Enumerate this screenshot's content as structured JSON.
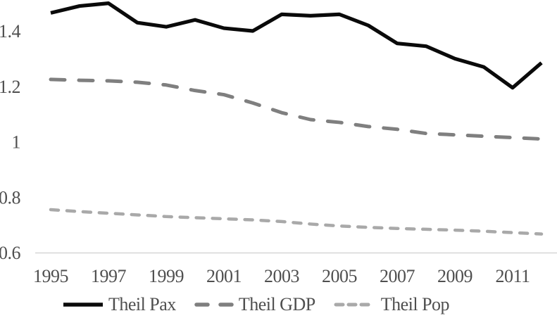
{
  "chart_data": {
    "type": "line",
    "title": "",
    "xlabel": "",
    "ylabel": "",
    "x": [
      1995,
      1996,
      1997,
      1998,
      1999,
      2000,
      2001,
      2002,
      2003,
      2004,
      2005,
      2006,
      2007,
      2008,
      2009,
      2010,
      2011,
      2012
    ],
    "series": [
      {
        "name": "Theil Pax",
        "color": "#0a0a0a",
        "line_style": "solid",
        "values": [
          1.465,
          1.49,
          1.5,
          1.43,
          1.415,
          1.44,
          1.41,
          1.4,
          1.46,
          1.455,
          1.46,
          1.42,
          1.355,
          1.345,
          1.3,
          1.27,
          1.195,
          1.285
        ]
      },
      {
        "name": "Theil GDP",
        "color": "#7f7f7f",
        "line_style": "dashed",
        "values": [
          1.225,
          1.222,
          1.22,
          1.215,
          1.205,
          1.185,
          1.17,
          1.14,
          1.105,
          1.08,
          1.07,
          1.055,
          1.045,
          1.03,
          1.025,
          1.02,
          1.015,
          1.01
        ]
      },
      {
        "name": "Theil Pop",
        "color": "#a9a9a9",
        "line_style": "dashed-short",
        "values": [
          0.755,
          0.748,
          0.742,
          0.736,
          0.73,
          0.726,
          0.722,
          0.718,
          0.712,
          0.703,
          0.696,
          0.691,
          0.687,
          0.684,
          0.681,
          0.677,
          0.672,
          0.667
        ]
      }
    ],
    "xticks": [
      "1995",
      "1997",
      "1999",
      "2001",
      "2003",
      "2005",
      "2007",
      "2009",
      "2011"
    ],
    "yticks": [
      {
        "label": "0.6",
        "value": 0.6
      },
      {
        "label": "0.8",
        "value": 0.8
      },
      {
        "label": "1",
        "value": 1.0
      },
      {
        "label": "1.2",
        "value": 1.2
      },
      {
        "label": "1.4",
        "value": 1.4
      }
    ],
    "xlim": [
      1994.5,
      2012.6
    ],
    "ylim": [
      0.6,
      1.5
    ],
    "grid": false,
    "legend_position": "bottom"
  },
  "colors": {
    "background": "#ffffff",
    "axis_line": "#d6d6d6",
    "tick_text": "#4f4f4f",
    "legend_text": "#4f4f4f"
  }
}
